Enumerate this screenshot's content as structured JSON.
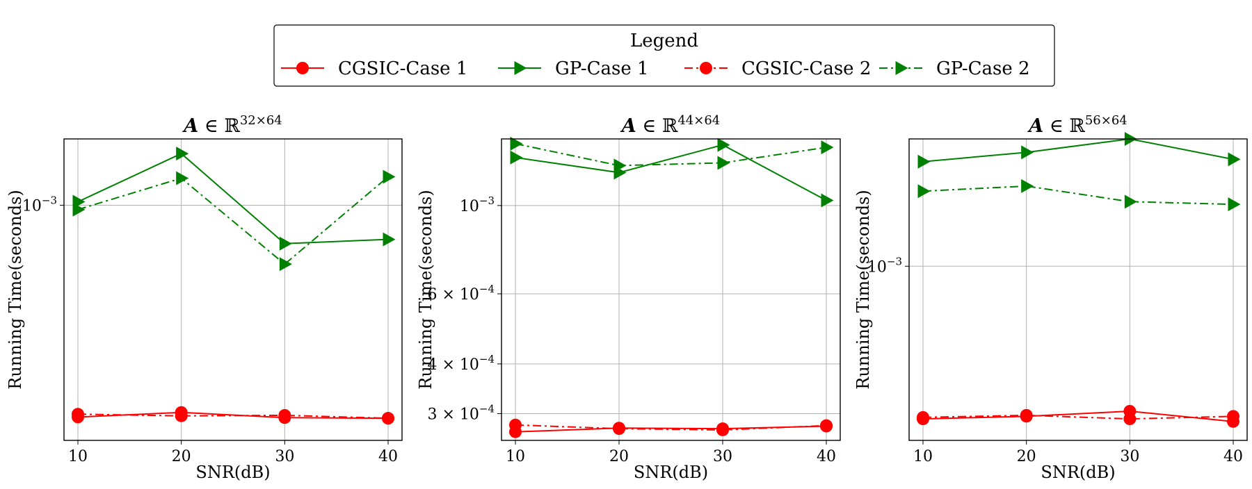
{
  "legend": {
    "title": "Legend",
    "entries": [
      {
        "label": "CGSIC-Case 1",
        "color": "#ff0000",
        "marker": "circle",
        "linestyle": "solid"
      },
      {
        "label": "GP-Case 1",
        "color": "#008000",
        "marker": "triangle-right",
        "linestyle": "solid"
      },
      {
        "label": "CGSIC-Case 2",
        "color": "#ff0000",
        "marker": "circle",
        "linestyle": "dashdot"
      },
      {
        "label": "GP-Case 2",
        "color": "#008000",
        "marker": "triangle-right",
        "linestyle": "dashdot"
      }
    ]
  },
  "chart_data": [
    {
      "type": "line",
      "title_base": "A ∈ ℝ",
      "title_sup": "32×64",
      "xlabel": "SNR(dB)",
      "ylabel": "Running Time(seconds)",
      "yscale": "log",
      "ylim": [
        0.000255,
        0.00147
      ],
      "x": [
        10,
        20,
        30,
        40
      ],
      "xticks": [
        {
          "v": 10,
          "label": "10"
        },
        {
          "v": 20,
          "label": "20"
        },
        {
          "v": 30,
          "label": "30"
        },
        {
          "v": 40,
          "label": "40"
        }
      ],
      "yticks": [
        {
          "v": 0.001,
          "base": "10",
          "exp": "−3"
        }
      ],
      "grid": true,
      "series": [
        {
          "name": "CGSIC-Case 1",
          "values": [
            0.000292,
            0.0003,
            0.000291,
            0.00029
          ]
        },
        {
          "name": "GP-Case 1",
          "values": [
            0.00102,
            0.00135,
            0.0008,
            0.00082
          ]
        },
        {
          "name": "CGSIC-Case 2",
          "values": [
            0.000297,
            0.000294,
            0.000295,
            0.00029
          ]
        },
        {
          "name": "GP-Case 2",
          "values": [
            0.000975,
            0.00117,
            0.00071,
            0.00118
          ]
        }
      ]
    },
    {
      "type": "line",
      "title_base": "A ∈ ℝ",
      "title_sup": "44×64",
      "xlabel": "SNR(dB)",
      "ylabel": "Running Time(seconds)",
      "yscale": "log",
      "ylim": [
        0.000257,
        0.00147
      ],
      "x": [
        10,
        20,
        30,
        40
      ],
      "xticks": [
        {
          "v": 10,
          "label": "10"
        },
        {
          "v": 20,
          "label": "20"
        },
        {
          "v": 30,
          "label": "30"
        },
        {
          "v": 40,
          "label": "40"
        }
      ],
      "yticks": [
        {
          "v": 0.001,
          "base": "10",
          "exp": "−3"
        },
        {
          "v": 0.0006,
          "base": "6 × 10",
          "exp": "−4"
        },
        {
          "v": 0.0004,
          "base": "4 × 10",
          "exp": "−4"
        },
        {
          "v": 0.0003,
          "base": "3 × 10",
          "exp": "−4"
        }
      ],
      "grid": true,
      "series": [
        {
          "name": "CGSIC-Case 1",
          "values": [
            0.00027,
            0.000276,
            0.000275,
            0.000279
          ]
        },
        {
          "name": "GP-Case 1",
          "values": [
            0.00132,
            0.00121,
            0.00142,
            0.00103
          ]
        },
        {
          "name": "CGSIC-Case 2",
          "values": [
            0.000281,
            0.000275,
            0.000273,
            0.00028
          ]
        },
        {
          "name": "GP-Case 2",
          "values": [
            0.00143,
            0.00126,
            0.00128,
            0.0014
          ]
        }
      ]
    },
    {
      "type": "line",
      "title_base": "A ∈ ℝ",
      "title_sup": "56×64",
      "xlabel": "SNR(dB)",
      "ylabel": "Running Time(seconds)",
      "yscale": "log",
      "ylim": [
        0.000585,
        0.00148
      ],
      "x": [
        10,
        20,
        30,
        40
      ],
      "xticks": [
        {
          "v": 10,
          "label": "10"
        },
        {
          "v": 20,
          "label": "20"
        },
        {
          "v": 30,
          "label": "30"
        },
        {
          "v": 40,
          "label": "40"
        }
      ],
      "yticks": [
        {
          "v": 0.001,
          "base": "10",
          "exp": "−3"
        }
      ],
      "grid": true,
      "series": [
        {
          "name": "CGSIC-Case 1",
          "values": [
            0.000625,
            0.00063,
            0.00064,
            0.00062
          ]
        },
        {
          "name": "GP-Case 1",
          "values": [
            0.00138,
            0.00142,
            0.00148,
            0.00139
          ]
        },
        {
          "name": "CGSIC-Case 2",
          "values": [
            0.000628,
            0.000632,
            0.000625,
            0.00063
          ]
        },
        {
          "name": "GP-Case 2",
          "values": [
            0.00126,
            0.00128,
            0.00122,
            0.00121
          ]
        }
      ]
    }
  ]
}
